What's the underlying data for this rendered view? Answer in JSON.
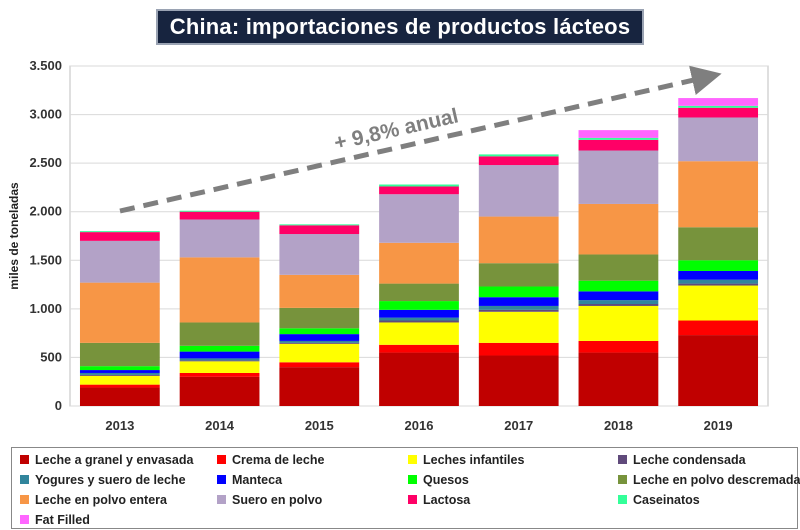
{
  "title": "China: importaciones de productos lácteos",
  "chart_data": {
    "type": "bar",
    "stacked": true,
    "categories": [
      "2013",
      "2014",
      "2015",
      "2016",
      "2017",
      "2018",
      "2019"
    ],
    "ylabel": "miles de toneladas",
    "ylim": [
      0,
      3500
    ],
    "yticks": [
      0,
      500,
      1000,
      1500,
      2000,
      2500,
      3000,
      3500
    ],
    "ytick_labels": [
      "0",
      "500",
      "1.000",
      "1.500",
      "2.000",
      "2.500",
      "3.000",
      "3.500"
    ],
    "grid": true,
    "legend_position": "bottom",
    "annotation": "+ 9,8% anual",
    "series": [
      {
        "name": "Leche a granel y envasada",
        "color": "#c00000",
        "values": [
          190,
          300,
          400,
          550,
          520,
          550,
          730
        ]
      },
      {
        "name": "Crema de leche",
        "color": "#ff0000",
        "values": [
          30,
          40,
          50,
          80,
          130,
          120,
          150
        ]
      },
      {
        "name": "Leches infantiles",
        "color": "#ffff00",
        "values": [
          90,
          120,
          190,
          230,
          320,
          360,
          360
        ]
      },
      {
        "name": "Leche condensada",
        "color": "#604a7b",
        "values": [
          10,
          10,
          10,
          20,
          20,
          20,
          20
        ]
      },
      {
        "name": "Yogures y suero de leche",
        "color": "#31859c",
        "values": [
          20,
          20,
          20,
          30,
          40,
          40,
          40
        ]
      },
      {
        "name": "Manteca",
        "color": "#0000ff",
        "values": [
          30,
          70,
          70,
          80,
          90,
          90,
          90
        ]
      },
      {
        "name": "Quesos",
        "color": "#00ff00",
        "values": [
          40,
          60,
          60,
          90,
          110,
          110,
          110
        ]
      },
      {
        "name": "Leche en polvo descremada",
        "color": "#77933c",
        "values": [
          240,
          240,
          210,
          180,
          240,
          270,
          340
        ]
      },
      {
        "name": "Leche en polvo entera",
        "color": "#f79646",
        "values": [
          620,
          670,
          340,
          420,
          480,
          520,
          680
        ]
      },
      {
        "name": "Suero en polvo",
        "color": "#b3a2c7",
        "values": [
          430,
          390,
          420,
          500,
          530,
          550,
          450
        ]
      },
      {
        "name": "Lactosa",
        "color": "#ff0066",
        "values": [
          90,
          80,
          90,
          80,
          90,
          110,
          100
        ]
      },
      {
        "name": "Caseinatos",
        "color": "#33ff99",
        "values": [
          10,
          10,
          10,
          20,
          20,
          20,
          20
        ]
      },
      {
        "name": "Fat Filled",
        "color": "#ff66ff",
        "values": [
          0,
          0,
          0,
          0,
          0,
          80,
          80
        ]
      }
    ]
  }
}
